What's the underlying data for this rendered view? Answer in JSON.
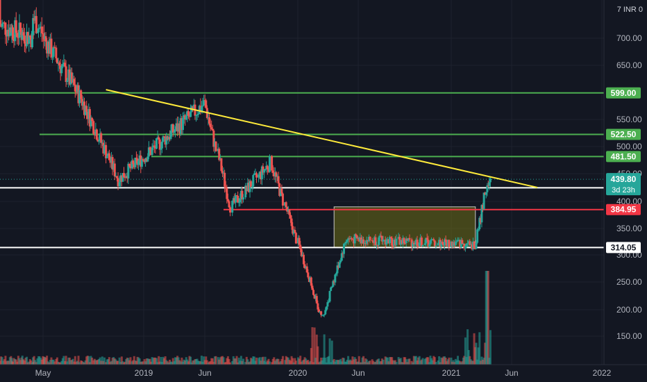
{
  "currency_label": "7 INR 0",
  "colors": {
    "background": "#131722",
    "grid": "#1e222d",
    "up": "#26a69a",
    "down": "#ef5350",
    "green_level": "#4caf50",
    "red_level": "#f23645",
    "white_level": "#ffffff",
    "trendline": "#ffeb3b",
    "consolidation_box": "rgba(128,128,20,0.45)",
    "current_tag": "#26a69a"
  },
  "chart_data": {
    "type": "candlestick",
    "title": "",
    "x_ticks": [
      "May",
      "2019",
      "Jun",
      "2020",
      "Jun",
      "2021",
      "Jun",
      "2022"
    ],
    "y_ticks": [
      150,
      200,
      250,
      300,
      350,
      400,
      450,
      500,
      550,
      650,
      700
    ],
    "ylim": [
      105,
      780
    ],
    "grid": true,
    "price_levels": [
      {
        "label": "599.00",
        "value": 599.0,
        "kind": "resistance",
        "color": "green"
      },
      {
        "label": "522.50",
        "value": 522.5,
        "kind": "resistance",
        "color": "green"
      },
      {
        "label": "481.50",
        "value": 481.5,
        "kind": "resistance",
        "color": "green"
      },
      {
        "label": "424.60",
        "value": 424.6,
        "kind": "level",
        "color": "white"
      },
      {
        "label": "384.95",
        "value": 384.95,
        "kind": "support",
        "color": "red"
      },
      {
        "label": "314.05",
        "value": 314.05,
        "kind": "support",
        "color": "white"
      }
    ],
    "current_price": {
      "label": "439.80",
      "value": 439.8,
      "countdown": "3d 23h"
    },
    "trendline": {
      "start": {
        "date": "2018-10",
        "price": 605
      },
      "end": {
        "date": "2021-08",
        "price": 425
      }
    },
    "consolidation_zone": {
      "from": "2020-04",
      "to": "2021-03",
      "low": 314,
      "high": 390
    },
    "key_points": [
      {
        "date": "2018-04",
        "price": 740
      },
      {
        "date": "2018-08",
        "price": 590
      },
      {
        "date": "2018-11",
        "price": 440
      },
      {
        "date": "2019-06",
        "price": 580
      },
      {
        "date": "2019-08",
        "price": 390
      },
      {
        "date": "2019-11",
        "price": 470
      },
      {
        "date": "2020-03",
        "price": 180
      },
      {
        "date": "2020-05",
        "price": 330
      },
      {
        "date": "2021-03",
        "price": 320
      },
      {
        "date": "2021-04",
        "price": 440
      }
    ],
    "volume_spike": {
      "date": "2021-04",
      "note": "largest volume bar"
    }
  }
}
